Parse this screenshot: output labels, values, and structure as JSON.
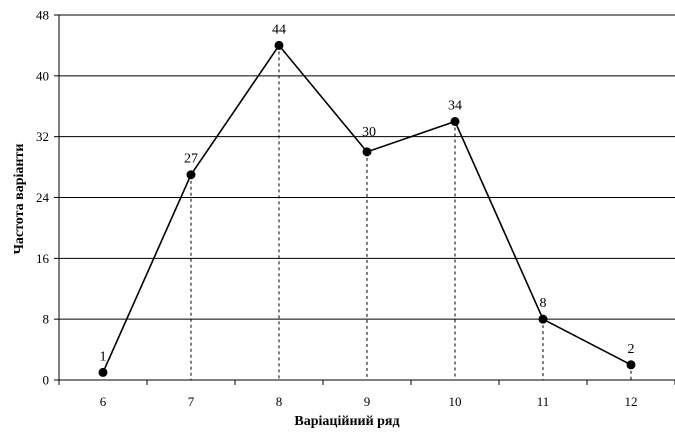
{
  "chart_data": {
    "type": "line",
    "title": "",
    "xlabel": "Варіаційний ряд",
    "ylabel": "Частота варіанти",
    "x": [
      6,
      7,
      8,
      9,
      10,
      11,
      12
    ],
    "series": [
      {
        "values": [
          1,
          27,
          44,
          30,
          34,
          8,
          2
        ]
      }
    ],
    "data_labels": [
      "1",
      "27",
      "44",
      "30",
      "34",
      "8",
      "2"
    ],
    "x_tick_labels": [
      "6",
      "7",
      "8",
      "9",
      "10",
      "11",
      "12"
    ],
    "y_ticks": [
      0,
      8,
      16,
      24,
      32,
      40,
      48
    ],
    "y_tick_labels": [
      "0",
      "8",
      "16",
      "24",
      "32",
      "40",
      "48"
    ],
    "xlim": [
      5.5,
      12.5
    ],
    "ylim": [
      0,
      48
    ],
    "grid": "horizontal",
    "drop_lines": "dashed",
    "marker": "filled-circle",
    "colors": {
      "line": "#000000",
      "grid": "#000000"
    }
  }
}
